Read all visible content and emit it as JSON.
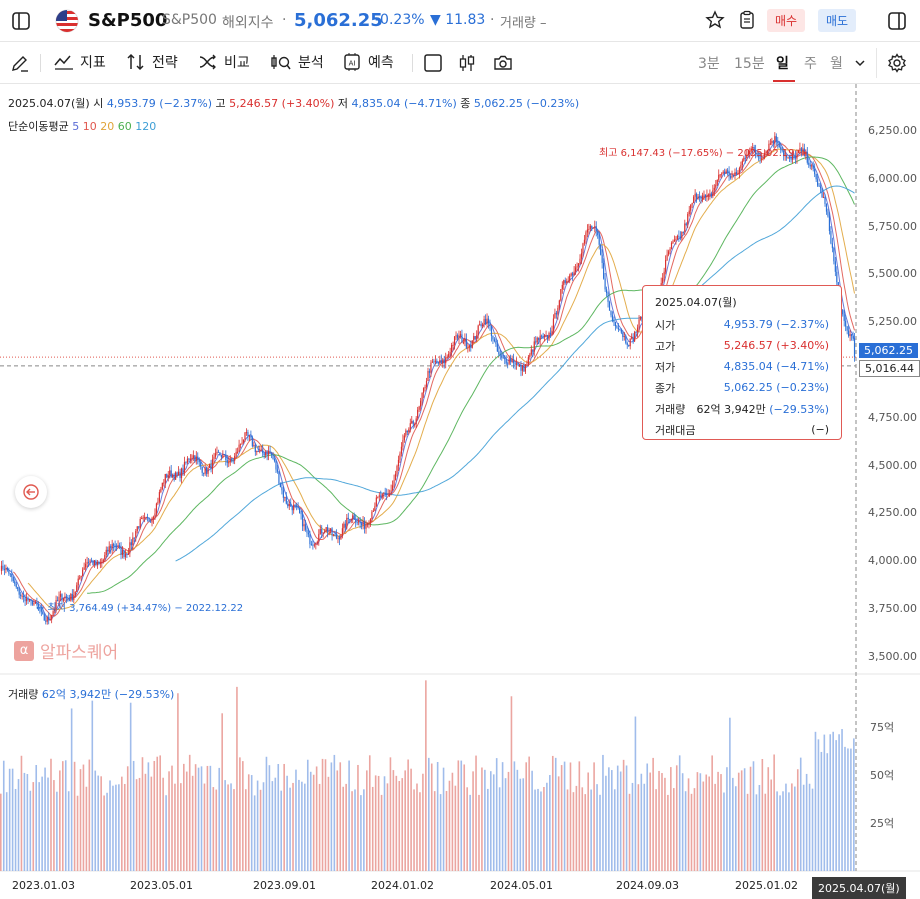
{
  "header": {
    "symbol": "S&P500",
    "subname": "S&P500",
    "market": "해외지수",
    "price": "5,062.25",
    "change_pct": "-0.23%",
    "change_abs": "▼ 11.83",
    "volume_label": "거래량 –",
    "buy_label": "매수",
    "sell_label": "매도"
  },
  "toolbar": {
    "indicator": "지표",
    "strategy": "전략",
    "compare": "비교",
    "analysis": "분석",
    "forecast": "예측",
    "periods": [
      "3분",
      "15분",
      "일",
      "주",
      "월"
    ],
    "selected_period": "일"
  },
  "ohlc": {
    "date": "2025.04.07(월)",
    "open_label": "시",
    "open": "4,953.79 (−2.37%)",
    "high_label": "고",
    "high": "5,246.57 (+3.40%)",
    "low_label": "저",
    "low": "4,835.04 (−4.71%)",
    "close_label": "종",
    "close": "5,062.25 (−0.23%)"
  },
  "ma": {
    "label": "단순이동평균",
    "periods": [
      "5",
      "10",
      "20",
      "60",
      "120"
    ],
    "colors": [
      "#5a6bd6",
      "#e0584f",
      "#e0a43a",
      "#4caf50",
      "#3f9fd6"
    ]
  },
  "annotations": {
    "high": "최고 6,147.43 (−17.65%) − 2025.02.19 →",
    "low": "← 최저 3,764.49 (+34.47%) − 2022.12.22"
  },
  "tooltip": {
    "date": "2025.04.07(월)",
    "rows": [
      {
        "label": "시가",
        "value": "4,953.79 (−2.37%)",
        "color": "#2a6fd6"
      },
      {
        "label": "고가",
        "value": "5,246.57 (+3.40%)",
        "color": "#d9302f"
      },
      {
        "label": "저가",
        "value": "4,835.04 (−4.71%)",
        "color": "#2a6fd6"
      },
      {
        "label": "종가",
        "value": "5,062.25 (−0.23%)",
        "color": "#2a6fd6"
      },
      {
        "label": "거래량",
        "value": "62억 3,942만",
        "extra": "(−29.53%)",
        "color": "#2a6fd6"
      },
      {
        "label": "거래대금",
        "value": "(−)",
        "color": "#222"
      }
    ]
  },
  "price_axis": {
    "ticks": [
      "6,250.00",
      "6,000.00",
      "5,750.00",
      "5,500.00",
      "5,250.00",
      "5,000.00",
      "4,750.00",
      "4,500.00",
      "4,250.00",
      "4,000.00",
      "3,750.00",
      "3,500.00"
    ],
    "current_tag": "5,062.25",
    "crosshair_tag": "5,016.44"
  },
  "volume": {
    "label": "거래량",
    "value": "62억 3,942만 (−29.53%)",
    "ticks": [
      "75억",
      "50억",
      "25억"
    ]
  },
  "date_axis": {
    "ticks": [
      "2023.01.03",
      "2023.05.01",
      "2023.09.01",
      "2024.01.02",
      "2024.05.01",
      "2024.09.03",
      "2025.01.02"
    ],
    "crosshair_date": "2025.04.07(월)"
  },
  "watermark": "알파스퀘어",
  "chart_data": {
    "type": "candlestick",
    "title": "S&P500",
    "xlim": [
      "2022.12",
      "2025.04"
    ],
    "ylim": [
      3500,
      6250
    ],
    "key_points": [
      {
        "date": "2022.12.22",
        "value": 3764.49,
        "label": "low"
      },
      {
        "date": "2023.07",
        "value": 4590
      },
      {
        "date": "2023.10",
        "value": 4110
      },
      {
        "date": "2024.03",
        "value": 5250
      },
      {
        "date": "2024.04",
        "value": 4960
      },
      {
        "date": "2024.07",
        "value": 5660
      },
      {
        "date": "2024.08",
        "value": 5190
      },
      {
        "date": "2024.12",
        "value": 6090
      },
      {
        "date": "2025.02.19",
        "value": 6147.43,
        "label": "high"
      },
      {
        "date": "2025.04.07",
        "value": 5062.25,
        "label": "last close"
      }
    ],
    "last_bar": {
      "date": "2025.04.07",
      "open": 4953.79,
      "high": 5246.57,
      "low": 4835.04,
      "close": 5062.25,
      "volume": "62억 3,942만"
    }
  }
}
